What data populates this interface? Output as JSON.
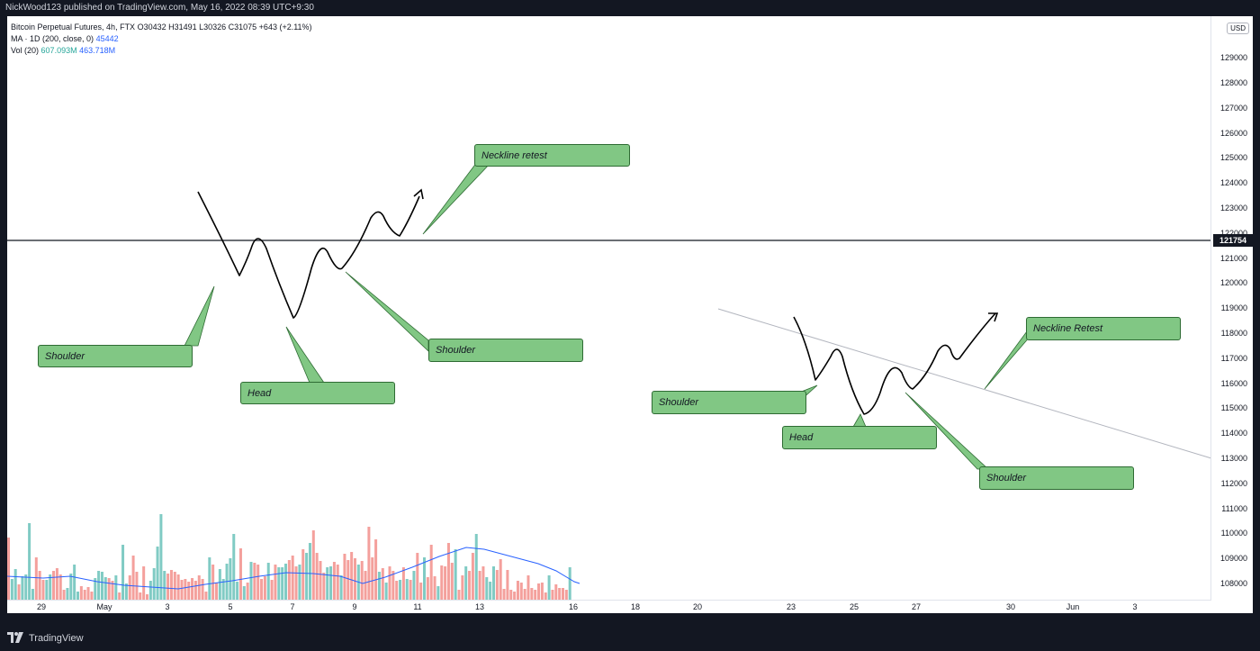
{
  "header": {
    "publish_text": "NickWood123 published on TradingView.com, May 16, 2022 08:39 UTC+9:30"
  },
  "legend": {
    "symbol_line": "Bitcoin Perpetual Futures, 4h, FTX  O30432  H31491  L30326  C31075  +643 (+2.11%)",
    "ma_label": "MA · 1D (200, close, 0)",
    "ma_value": "45442",
    "vol_label": "Vol (20)",
    "vol_value_1": "607.093M",
    "vol_value_2": "463.718M"
  },
  "price_axis": {
    "currency": "USD",
    "ticks": [
      "129000",
      "128000",
      "127000",
      "126000",
      "125000",
      "124000",
      "123000",
      "122000",
      "121000",
      "120000",
      "119000",
      "118000",
      "117000",
      "116000",
      "115000",
      "114000",
      "113000",
      "112000",
      "111000",
      "110000",
      "109000",
      "108000"
    ],
    "current_price_label": "121754"
  },
  "time_axis": {
    "ticks": [
      "29",
      "May",
      "3",
      "5",
      "7",
      "9",
      "11",
      "13",
      "16",
      "18",
      "20",
      "23",
      "25",
      "27",
      "30",
      "Jun",
      "3"
    ]
  },
  "callouts": {
    "neckline_retest_1": "Neckline retest",
    "shoulder_1": "Shoulder",
    "head_1": "Head",
    "shoulder_2": "Shoulder",
    "neckline_retest_2": "Neckline Retest",
    "shoulder_3": "Shoulder",
    "head_2": "Head",
    "shoulder_4": "Shoulder"
  },
  "colors": {
    "up_volume": "#80cbc4",
    "down_volume": "#f4a09c",
    "ma_line": "#2962ff",
    "callout_fill": "#81c784",
    "background": "#131722"
  },
  "chart_data": {
    "type": "bar",
    "series": [
      {
        "values": [
          0,
          1,
          1,
          0,
          1,
          1,
          1,
          1,
          0,
          0,
          0,
          1,
          1,
          0,
          0,
          0,
          0,
          1,
          1,
          1,
          1,
          0,
          0,
          0,
          0,
          1,
          1,
          1,
          1,
          0,
          0,
          1,
          0,
          1,
          1,
          0,
          0,
          0,
          0,
          0,
          0,
          1,
          1,
          1,
          1,
          1,
          0,
          0,
          0,
          0,
          0,
          0,
          0,
          0,
          0,
          0,
          0,
          0,
          1,
          0,
          0,
          1,
          1,
          1,
          1,
          1,
          1,
          0,
          1,
          0,
          1,
          0,
          0,
          0,
          0,
          1,
          0,
          0,
          1,
          1,
          1,
          0,
          0,
          0,
          1,
          0,
          1,
          1,
          0,
          0,
          0,
          0,
          1,
          1,
          0,
          0,
          1,
          0,
          0,
          0,
          0,
          1,
          0,
          0,
          0,
          0,
          0,
          1,
          0,
          1,
          0,
          0,
          0,
          1,
          0,
          1,
          0,
          1,
          0,
          0,
          1,
          0,
          0,
          0,
          1,
          0,
          0,
          0,
          0,
          1,
          0,
          0,
          1,
          0,
          0,
          1,
          0,
          0,
          1,
          1,
          1,
          0,
          0,
          0,
          0,
          0,
          0,
          0,
          0,
          0,
          0,
          0,
          0,
          0,
          0,
          0,
          1,
          0,
          0,
          0,
          0,
          0,
          1
        ]
      }
    ]
  }
}
